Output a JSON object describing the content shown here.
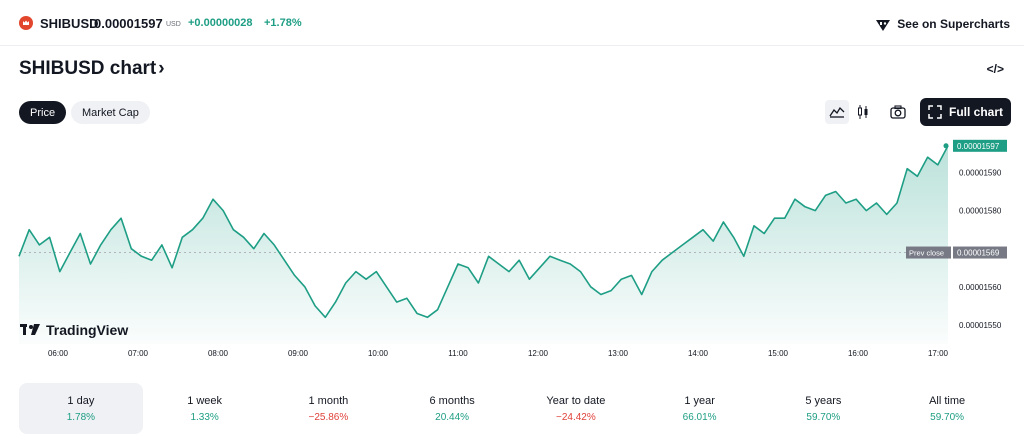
{
  "header": {
    "symbol": "SHIBUSD",
    "price": "0.00001597",
    "currency": "USD",
    "change_abs": "+0.00000028",
    "change_pct": "+1.78%",
    "supercharts_link": "See on Supercharts"
  },
  "title": {
    "text": "SHIBUSD chart",
    "arrow": "›",
    "embed_icon": "</>"
  },
  "tabs": [
    {
      "label": "Price",
      "active": true
    },
    {
      "label": "Market Cap",
      "active": false
    }
  ],
  "toolbar": {
    "area_icon": "area-chart-icon",
    "candle_icon": "candlestick-icon",
    "snapshot_icon": "camera-icon",
    "full_chart_label": "Full chart"
  },
  "chart": {
    "watermark": "TradingView",
    "current_price_label": "0.00001597",
    "prev_close_tag": "Prev close",
    "prev_close_value": "0.00001569",
    "colors": {
      "line": "#1e9e85",
      "fill": "#1e9e85",
      "prev_tag_bg": "#777a85"
    }
  },
  "chart_data": {
    "type": "area",
    "ylim": [
      1.545e-05,
      1.598e-05
    ],
    "yticks": [
      "0.00001590",
      "0.00001580",
      "0.00001560",
      "0.00001550"
    ],
    "ytick_values": [
      1.59e-05,
      1.58e-05,
      1.56e-05,
      1.55e-05
    ],
    "xticks": [
      "06:00",
      "07:00",
      "08:00",
      "09:00",
      "10:00",
      "11:00",
      "12:00",
      "13:00",
      "14:00",
      "15:00",
      "16:00",
      "17:00"
    ],
    "prev_close": 1.569e-05,
    "last": 1.597e-05,
    "series": [
      {
        "values": [
          1.568e-05,
          1.575e-05,
          1.571e-05,
          1.573e-05,
          1.564e-05,
          1.569e-05,
          1.574e-05,
          1.566e-05,
          1.571e-05,
          1.575e-05,
          1.578e-05,
          1.57e-05,
          1.568e-05,
          1.567e-05,
          1.571e-05,
          1.565e-05,
          1.573e-05,
          1.575e-05,
          1.578e-05,
          1.583e-05,
          1.58e-05,
          1.575e-05,
          1.573e-05,
          1.57e-05,
          1.574e-05,
          1.571e-05,
          1.567e-05,
          1.563e-05,
          1.56e-05,
          1.555e-05,
          1.552e-05,
          1.556e-05,
          1.561e-05,
          1.564e-05,
          1.562e-05,
          1.564e-05,
          1.56e-05,
          1.556e-05,
          1.557e-05,
          1.553e-05,
          1.552e-05,
          1.554e-05,
          1.56e-05,
          1.566e-05,
          1.565e-05,
          1.561e-05,
          1.568e-05,
          1.566e-05,
          1.564e-05,
          1.567e-05,
          1.562e-05,
          1.565e-05,
          1.568e-05,
          1.567e-05,
          1.566e-05,
          1.564e-05,
          1.56e-05,
          1.558e-05,
          1.559e-05,
          1.562e-05,
          1.563e-05,
          1.558e-05,
          1.564e-05,
          1.567e-05,
          1.569e-05,
          1.571e-05,
          1.573e-05,
          1.575e-05,
          1.572e-05,
          1.577e-05,
          1.573e-05,
          1.568e-05,
          1.576e-05,
          1.574e-05,
          1.578e-05,
          1.578e-05,
          1.583e-05,
          1.581e-05,
          1.58e-05,
          1.584e-05,
          1.585e-05,
          1.582e-05,
          1.583e-05,
          1.58e-05,
          1.582e-05,
          1.579e-05,
          1.582e-05,
          1.591e-05,
          1.589e-05,
          1.594e-05,
          1.592e-05,
          1.597e-05
        ]
      }
    ]
  },
  "periods": [
    {
      "label": "1 day",
      "value": "1.78%",
      "sign": "pos",
      "active": true
    },
    {
      "label": "1 week",
      "value": "1.33%",
      "sign": "pos",
      "active": false
    },
    {
      "label": "1 month",
      "value": "−25.86%",
      "sign": "neg",
      "active": false
    },
    {
      "label": "6 months",
      "value": "20.44%",
      "sign": "pos",
      "active": false
    },
    {
      "label": "Year to date",
      "value": "−24.42%",
      "sign": "neg",
      "active": false
    },
    {
      "label": "1 year",
      "value": "66.01%",
      "sign": "pos",
      "active": false
    },
    {
      "label": "5 years",
      "value": "59.70%",
      "sign": "pos",
      "active": false
    },
    {
      "label": "All time",
      "value": "59.70%",
      "sign": "pos",
      "active": false
    }
  ]
}
